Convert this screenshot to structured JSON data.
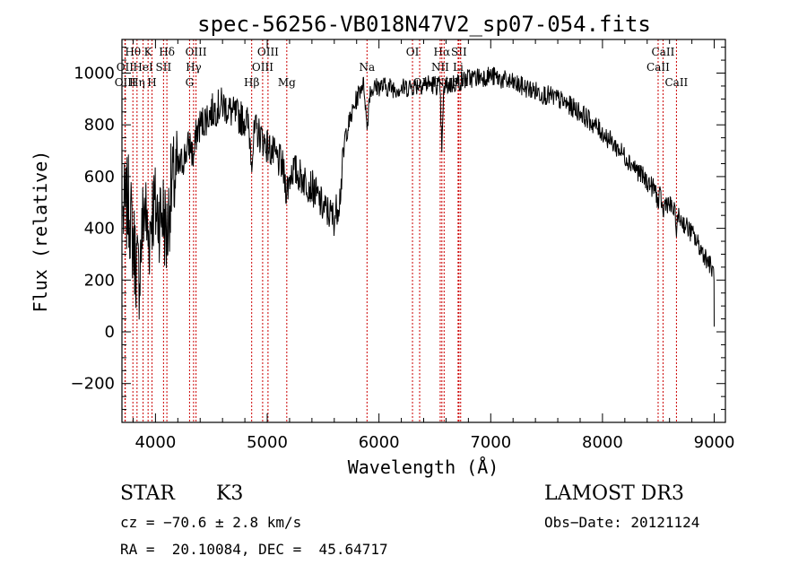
{
  "chart_data": {
    "type": "line",
    "title": "spec-56256-VB018N47V2_sp07-054.fits",
    "xlabel": "Wavelength (Å)",
    "ylabel": "Flux (relative)",
    "xlim": [
      3700,
      9100
    ],
    "ylim": [
      -350,
      1130
    ],
    "x_ticks": [
      4000,
      5000,
      6000,
      7000,
      8000,
      9000
    ],
    "y_ticks": [
      -200,
      0,
      200,
      400,
      600,
      800,
      1000
    ],
    "line_color": "#000000",
    "marker_color": "#cc0000",
    "continuum": [
      [
        3710,
        450
      ],
      [
        3760,
        500
      ],
      [
        3800,
        350
      ],
      [
        3850,
        200
      ],
      [
        3900,
        500
      ],
      [
        3950,
        420
      ],
      [
        4000,
        470
      ],
      [
        4050,
        450
      ],
      [
        4100,
        520
      ],
      [
        4150,
        560
      ],
      [
        4200,
        620
      ],
      [
        4300,
        720
      ],
      [
        4400,
        800
      ],
      [
        4500,
        850
      ],
      [
        4600,
        880
      ],
      [
        4700,
        840
      ],
      [
        4800,
        820
      ],
      [
        4900,
        780
      ],
      [
        5000,
        720
      ],
      [
        5100,
        660
      ],
      [
        5200,
        640
      ],
      [
        5300,
        600
      ],
      [
        5400,
        560
      ],
      [
        5500,
        480
      ],
      [
        5600,
        440
      ],
      [
        5650,
        520
      ],
      [
        5700,
        760
      ],
      [
        5800,
        900
      ],
      [
        5850,
        960
      ],
      [
        5900,
        930
      ],
      [
        6000,
        950
      ],
      [
        6200,
        940
      ],
      [
        6400,
        960
      ],
      [
        6600,
        950
      ],
      [
        6800,
        980
      ],
      [
        7000,
        990
      ],
      [
        7200,
        960
      ],
      [
        7400,
        930
      ],
      [
        7600,
        900
      ],
      [
        7800,
        850
      ],
      [
        8000,
        770
      ],
      [
        8200,
        680
      ],
      [
        8400,
        580
      ],
      [
        8600,
        490
      ],
      [
        8800,
        380
      ],
      [
        8950,
        270
      ],
      [
        9000,
        220
      ]
    ],
    "absorption_dips": [
      [
        3934,
        -80,
        20
      ],
      [
        3969,
        40,
        18
      ],
      [
        4101,
        -150,
        22
      ],
      [
        4227,
        0,
        15
      ],
      [
        4340,
        -80,
        18
      ],
      [
        4861,
        -110,
        20
      ],
      [
        5175,
        -90,
        30
      ],
      [
        5893,
        -140,
        15
      ],
      [
        6563,
        -230,
        12
      ],
      [
        8498,
        -40,
        12
      ],
      [
        8542,
        -60,
        12
      ],
      [
        8662,
        -50,
        12
      ]
    ],
    "noise_seed": 7,
    "series_endpoint": [
      9000,
      20
    ],
    "line_markers": [
      {
        "label": "Hθ",
        "x": 3798,
        "row": 1
      },
      {
        "label": "OII",
        "x": 3727,
        "row": 2
      },
      {
        "label": "OIII",
        "x": 3730,
        "row": 3
      },
      {
        "label": "K",
        "x": 3934,
        "row": 1
      },
      {
        "label": "HeI",
        "x": 3889,
        "row": 2
      },
      {
        "label": "Hη",
        "x": 3835,
        "row": 3
      },
      {
        "label": "Hδ",
        "x": 4102,
        "row": 1
      },
      {
        "label": "SII",
        "x": 4072,
        "row": 2
      },
      {
        "label": "H",
        "x": 3969,
        "row": 3
      },
      {
        "label": "OIII",
        "x": 4363,
        "row": 1
      },
      {
        "label": "Hγ",
        "x": 4341,
        "row": 2
      },
      {
        "label": "G",
        "x": 4305,
        "row": 3
      },
      {
        "label": "OIII",
        "x": 5007,
        "row": 1
      },
      {
        "label": "OIII",
        "x": 4959,
        "row": 2
      },
      {
        "label": "Hβ",
        "x": 4861,
        "row": 3
      },
      {
        "label": "Mg",
        "x": 5175,
        "row": 3
      },
      {
        "label": "Na",
        "x": 5893,
        "row": 2
      },
      {
        "label": "OI",
        "x": 6300,
        "row": 1
      },
      {
        "label": "OI",
        "x": 6364,
        "row": 3
      },
      {
        "label": "Hα",
        "x": 6563,
        "row": 1
      },
      {
        "label": "NII",
        "x": 6548,
        "row": 2
      },
      {
        "label": "NII",
        "x": 6583,
        "row": 3
      },
      {
        "label": "SII",
        "x": 6716,
        "row": 1
      },
      {
        "label": "Li",
        "x": 6708,
        "row": 2
      },
      {
        "label": "SII",
        "x": 6731,
        "row": 3
      },
      {
        "label": "CaII",
        "x": 8542,
        "row": 1
      },
      {
        "label": "CaII",
        "x": 8498,
        "row": 2
      },
      {
        "label": "CaII",
        "x": 8662,
        "row": 3
      }
    ]
  },
  "info": {
    "class": "STAR",
    "subclass": "K3",
    "survey": "LAMOST DR3",
    "cz": "cz = −70.6 ± 2.8 km/s",
    "obs_date": "Obs−Date: 20121124",
    "coords": "RA =  20.10084, DEC =  45.64717"
  }
}
